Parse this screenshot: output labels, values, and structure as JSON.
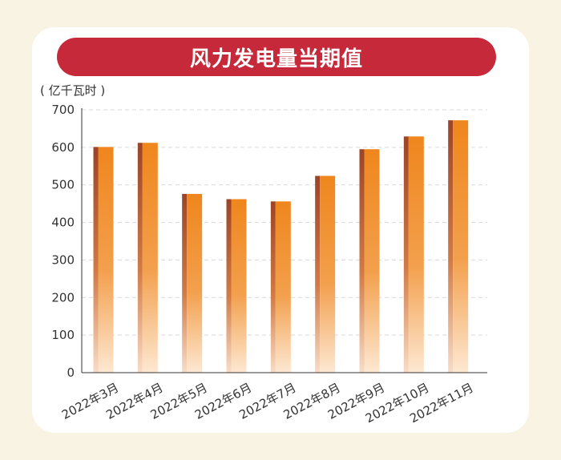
{
  "title": "风力发电量当期值",
  "colors": {
    "background": "#f9f3e3",
    "card": "#ffffff",
    "banner": "#c5293a",
    "bar_front": "#ef861d",
    "bar_side": "#9b4428",
    "grid": "#d9d9d9"
  },
  "chart_data": {
    "type": "bar",
    "title": "风力发电量当期值",
    "unit_label": "( 亿千瓦时 )",
    "xlabel": "",
    "ylabel": "亿千瓦时",
    "categories": [
      "2022年3月",
      "2022年4月",
      "2022年5月",
      "2022年6月",
      "2022年7月",
      "2022年8月",
      "2022年9月",
      "2022年10月",
      "2022年11月"
    ],
    "values": [
      601,
      612,
      476,
      462,
      456,
      524,
      595,
      629,
      672
    ],
    "ylim": [
      0,
      700
    ],
    "yticks": [
      0,
      100,
      200,
      300,
      400,
      500,
      600,
      700
    ],
    "grid": true,
    "legend": "none"
  }
}
